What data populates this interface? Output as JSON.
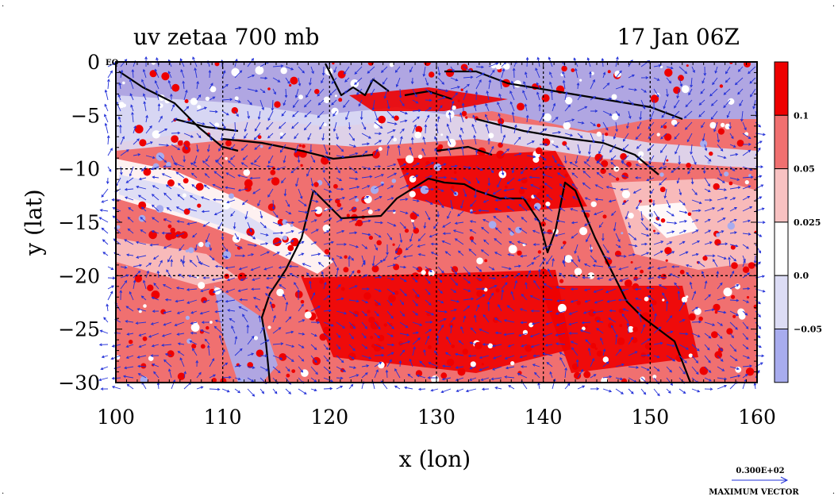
{
  "chart_data": {
    "type": "heatmap",
    "title": "uv zetaa 700 mb",
    "time_label": "17 Jan 06Z",
    "xlabel": "x (lon)",
    "ylabel": "y (lat)",
    "xlim": [
      100,
      160
    ],
    "ylim": [
      -30,
      0
    ],
    "x_ticks": [
      100,
      110,
      120,
      130,
      140,
      150,
      160
    ],
    "y_ticks": [
      0,
      -5,
      -10,
      -15,
      -20,
      -25,
      -30
    ],
    "y_tick_labels": [
      "0",
      "−5",
      "−10",
      "−15",
      "−20",
      "−25",
      "−30"
    ],
    "eq_label": "EQ",
    "grid": true,
    "colorbar": {
      "levels": [
        {
          "label": "",
          "color": "#ee0000"
        },
        {
          "label": "0.1",
          "color": "#f07070"
        },
        {
          "label": "0.05",
          "color": "#f8c2c2"
        },
        {
          "label": "0.025",
          "color": "#ffffff"
        },
        {
          "label": "0.0",
          "color": "#dcdcf5"
        },
        {
          "label": "−0.05",
          "color": "#a8acee"
        }
      ]
    },
    "vector_color": "#2230d8",
    "coastline_color": "#000000",
    "max_vector": {
      "value": "0.300E+02",
      "label": "MAXIMUM VECTOR"
    }
  }
}
